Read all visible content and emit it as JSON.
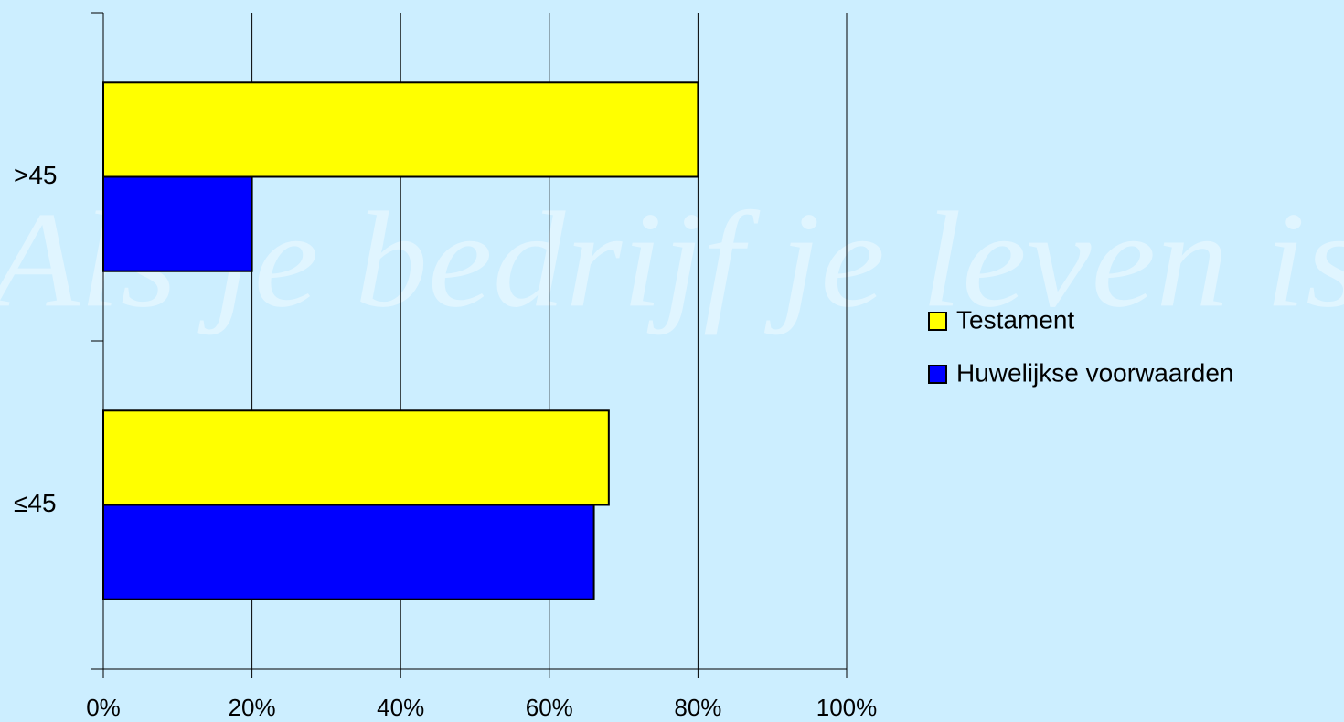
{
  "chart_data": {
    "type": "hbar",
    "watermark": "Als je bedrijf je leven is",
    "categories": [
      ">45",
      "≤45"
    ],
    "series": [
      {
        "name": "Testament",
        "color": "#ffff00",
        "values": [
          80,
          68
        ]
      },
      {
        "name": "Huwelijkse voorwaarden",
        "color": "#0000ff",
        "values": [
          20,
          66
        ]
      }
    ],
    "xlim": [
      0,
      100
    ],
    "xticks": [
      {
        "value": 0,
        "label": "0%"
      },
      {
        "value": 20,
        "label": "20%"
      },
      {
        "value": 40,
        "label": "40%"
      },
      {
        "value": 60,
        "label": "60%"
      },
      {
        "value": 80,
        "label": "80%"
      },
      {
        "value": 100,
        "label": "100%"
      }
    ],
    "grid": true,
    "legend": "right"
  }
}
